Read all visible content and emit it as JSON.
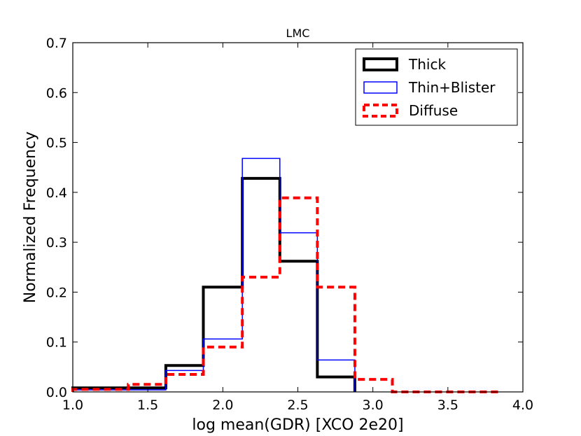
{
  "chart_data": {
    "type": "step-histogram",
    "title": "LMC",
    "xlabel": "log mean(GDR) [XCO 2e20]",
    "ylabel": "Normalized Frequency",
    "xlim": [
      1.0,
      4.0
    ],
    "ylim": [
      0.0,
      0.7
    ],
    "xticks": [
      1.0,
      1.5,
      2.0,
      2.5,
      3.0,
      3.5,
      4.0
    ],
    "xtick_labels": [
      "1.0",
      "1.5",
      "2.0",
      "2.5",
      "3.0",
      "3.5",
      "4.0"
    ],
    "yticks": [
      0.0,
      0.1,
      0.2,
      0.3,
      0.4,
      0.5,
      0.6,
      0.7
    ],
    "ytick_labels": [
      "0.0",
      "0.1",
      "0.2",
      "0.3",
      "0.4",
      "0.5",
      "0.6",
      "0.7"
    ],
    "grid": false,
    "legend_position": "top-right",
    "series": [
      {
        "name": "Thick",
        "color": "#000000",
        "style": "solid-thick",
        "bin_edges": [
          1.0,
          1.37,
          1.62,
          1.87,
          2.13,
          2.38,
          2.63,
          2.88
        ],
        "values": [
          0.008,
          0.008,
          0.053,
          0.21,
          0.428,
          0.262,
          0.03
        ]
      },
      {
        "name": "Thin+Blister",
        "color": "#0000ff",
        "style": "solid-thin",
        "bin_edges": [
          1.0,
          1.37,
          1.62,
          1.87,
          2.13,
          2.38,
          2.63,
          2.88
        ],
        "values": [
          0.004,
          0.004,
          0.043,
          0.106,
          0.468,
          0.319,
          0.064
        ]
      },
      {
        "name": "Diffuse",
        "color": "#ff0000",
        "style": "dashed",
        "bin_edges": [
          1.0,
          1.37,
          1.62,
          1.87,
          2.13,
          2.38,
          2.63,
          2.88,
          3.13,
          3.85
        ],
        "values": [
          0.005,
          0.015,
          0.035,
          0.09,
          0.23,
          0.389,
          0.21,
          0.025,
          0.0
        ]
      }
    ]
  }
}
